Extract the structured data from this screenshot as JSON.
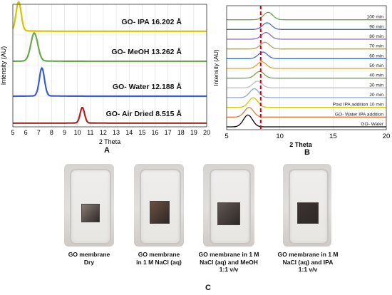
{
  "chart_data": [
    {
      "panel": "A",
      "type": "line",
      "xlabel": "2 Theta",
      "ylabel": "Intensity (AU)",
      "xlim": [
        5,
        20
      ],
      "xticks": [
        5,
        6,
        7,
        8,
        9,
        10,
        11,
        12,
        13,
        14,
        15,
        16,
        17,
        18,
        19,
        20
      ],
      "series": [
        {
          "name": "GO- IPA 16.202 Å",
          "color": "#d4c400",
          "peak": 5.45,
          "width": 0.28,
          "baseline": 0.78,
          "height": 0.235
        },
        {
          "name": "GO- MeOH 13.262 Å",
          "color": "#6aa84f",
          "peak": 6.66,
          "width": 0.38,
          "baseline": 0.535,
          "height": 0.225
        },
        {
          "name": "GO- Water 12.188 Å",
          "color": "#3a5fcd",
          "peak": 7.25,
          "width": 0.28,
          "baseline": 0.25,
          "height": 0.225
        },
        {
          "name": "GO- Air Dried 8.515 Å",
          "color": "#b22222",
          "peak": 10.38,
          "width": 0.24,
          "baseline": 0.03,
          "height": 0.125
        }
      ]
    },
    {
      "panel": "B",
      "type": "line",
      "xlabel": "2 Theta",
      "ylabel": "Intensity (AU)",
      "xlim": [
        5,
        20
      ],
      "xticks": [
        5,
        10,
        15,
        20
      ],
      "vline": 8.2,
      "series": [
        {
          "name": "GO- Water",
          "color": "#000000",
          "peak": 7.0,
          "height": 1.6
        },
        {
          "name": "GO- Water   IPA addition",
          "color": "#e07a3a",
          "peak": 7.1,
          "height": 1.3
        },
        {
          "name": "Post IPA addition 10 min",
          "color": "#d4c400",
          "peak": 7.5,
          "height": 1.3
        },
        {
          "name": "20 min",
          "color": "#8aa6d6",
          "peak": 7.6,
          "height": 1.2
        },
        {
          "name": "30 min",
          "color": "#c0c0c0",
          "peak": 7.9,
          "height": 0.9
        },
        {
          "name": "40 min",
          "color": "#6aa84f",
          "peak": 8.1,
          "height": 0.9
        },
        {
          "name": "50 min",
          "color": "#e0a030",
          "peak": 8.3,
          "height": 0.9
        },
        {
          "name": "60 min",
          "color": "#3a6fcd",
          "peak": 8.4,
          "height": 0.9
        },
        {
          "name": "70 min",
          "color": "#b0a060",
          "peak": 8.6,
          "height": 0.9
        },
        {
          "name": "80 min",
          "color": "#8e6fc0",
          "peak": 8.7,
          "height": 0.9
        },
        {
          "name": "90 min",
          "color": "#4a6fb0",
          "peak": 8.8,
          "height": 0.9
        },
        {
          "name": "100 min",
          "color": "#6aa84f",
          "peak": 8.9,
          "height": 1.0
        }
      ]
    }
  ],
  "labels": {
    "a": "A",
    "b": "B",
    "c": "C"
  },
  "photos": [
    {
      "caption_lines": [
        "GO membrane",
        "Dry"
      ],
      "membrane_color": "#8a7d74"
    },
    {
      "caption_lines": [
        "GO membrane",
        "in 1 M NaCl (aq)"
      ],
      "membrane_color": "#6b5040"
    },
    {
      "caption_lines": [
        "GO membrane in 1 M",
        "NaCl (aq) and MeOH",
        "1:1 v/v"
      ],
      "membrane_color": "#5f5752"
    },
    {
      "caption_lines": [
        "GO membrane in 1 M",
        "NaCl (aq) and IPA",
        "1:1 v/v"
      ],
      "membrane_color": "#3d3432"
    }
  ]
}
